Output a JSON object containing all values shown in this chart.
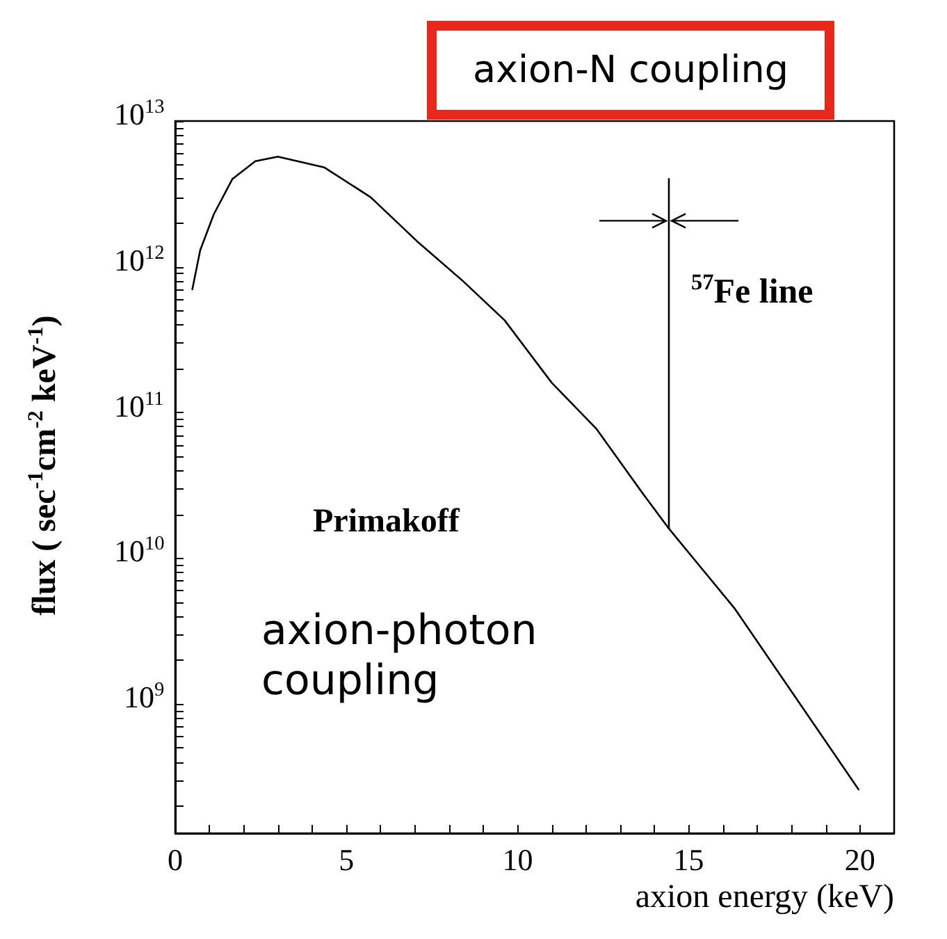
{
  "chart_data": {
    "type": "line",
    "xlabel": "axion energy (keV)",
    "ylabel": "flux ( sec$^{-1}$cm$^{-2}$ keV$^{-1}$)",
    "log": "y",
    "xlim": [
      0,
      21
    ],
    "xticks": [
      0,
      {
        "value": 1,
        "label": null
      },
      {
        "value": 2,
        "label": null
      },
      {
        "value": 3,
        "label": null
      },
      {
        "value": 4,
        "label": null
      },
      5,
      {
        "value": 6,
        "label": null
      },
      {
        "value": 7,
        "label": null
      },
      {
        "value": 8,
        "label": null
      },
      {
        "value": 9,
        "label": null
      },
      10,
      {
        "value": 11,
        "label": null
      },
      {
        "value": 12,
        "label": null
      },
      {
        "value": 13,
        "label": null
      },
      {
        "value": 14,
        "label": null
      },
      15,
      {
        "value": 16,
        "label": null
      },
      {
        "value": 17,
        "label": null
      },
      {
        "value": 18,
        "label": null
      },
      {
        "value": 19,
        "label": null
      },
      20
    ],
    "ylim": [
      130000000.0,
      10000000000000.0
    ],
    "yticks": [
      {
        "value": 200000000.0,
        "label": null
      },
      {
        "value": 300000000.0,
        "label": null
      },
      {
        "value": 400000000.0,
        "label": null
      },
      {
        "value": 500000000.0,
        "label": null
      },
      {
        "value": 600000000.0,
        "label": null
      },
      {
        "value": 700000000.0,
        "label": null
      },
      {
        "value": 800000000.0,
        "label": null
      },
      {
        "value": 900000000.0,
        "label": null
      },
      {
        "value": 1000000000.0,
        "label": "10$^{9}$"
      },
      {
        "value": 2000000000.0,
        "label": null
      },
      {
        "value": 3000000000.0,
        "label": null
      },
      {
        "value": 4000000000.0,
        "label": null
      },
      {
        "value": 5000000000.0,
        "label": null
      },
      {
        "value": 6000000000.0,
        "label": null
      },
      {
        "value": 7000000000.0,
        "label": null
      },
      {
        "value": 8000000000.0,
        "label": null
      },
      {
        "value": 9000000000.0,
        "label": null
      },
      {
        "value": 10000000000.0,
        "label": "10$^{10}$"
      },
      {
        "value": 20000000000.0,
        "label": null
      },
      {
        "value": 30000000000.0,
        "label": null
      },
      {
        "value": 40000000000.0,
        "label": null
      },
      {
        "value": 50000000000.0,
        "label": null
      },
      {
        "value": 60000000000.0,
        "label": null
      },
      {
        "value": 70000000000.0,
        "label": null
      },
      {
        "value": 80000000000.0,
        "label": null
      },
      {
        "value": 90000000000.0,
        "label": null
      },
      {
        "value": 100000000000.0,
        "label": "10$^{11}$"
      },
      {
        "value": 200000000000.0,
        "label": null
      },
      {
        "value": 300000000000.0,
        "label": null
      },
      {
        "value": 400000000000.0,
        "label": null
      },
      {
        "value": 500000000000.0,
        "label": null
      },
      {
        "value": 600000000000.0,
        "label": null
      },
      {
        "value": 700000000000.0,
        "label": null
      },
      {
        "value": 800000000000.0,
        "label": null
      },
      {
        "value": 900000000000.0,
        "label": null
      },
      {
        "value": 1000000000000.0,
        "label": "10$^{12}$"
      },
      {
        "value": 2000000000000.0,
        "label": null
      },
      {
        "value": 3000000000000.0,
        "label": null
      },
      {
        "value": 4000000000000.0,
        "label": null
      },
      {
        "value": 5000000000000.0,
        "label": null
      },
      {
        "value": 6000000000000.0,
        "label": null
      },
      {
        "value": 7000000000000.0,
        "label": null
      },
      {
        "value": 8000000000000.0,
        "label": null
      },
      {
        "value": 9000000000000.0,
        "label": null
      },
      {
        "value": 10000000000000.0,
        "label": "10$^{13}$"
      }
    ],
    "grid": false,
    "marker": "none",
    "line_style": "solid",
    "series": [
      {
        "color": "#000000",
        "x": [
          0.5,
          0.73,
          1.13,
          1.67,
          2.34,
          3.0,
          4.36,
          5.71,
          7.06,
          8.4,
          9.62,
          11,
          12.31,
          13.65,
          14.42,
          16.35,
          19.96
        ],
        "values": [
          700000000000.0,
          1300000000000.0,
          2300000000000.0,
          4000000000000.0,
          5300000000000.0,
          5700000000000.0,
          4800000000000.0,
          3000000000000.0,
          1500000000000.0,
          800000000000.0,
          430000000000.0,
          160000000000.0,
          77000000000.0,
          28000000000.0,
          16000000000.0,
          4500000000.0,
          260000000.0
        ]
      },
      {
        "color": "#000000",
        "x": [
          14.42,
          14.42
        ],
        "values": [
          16000000000.0,
          4000000000000.0
        ]
      }
    ],
    "annotations": [
      "axion-N coupling",
      {
        "text": "$^{57}$Fe line",
        "x": 14.42,
        "y": 4000000000000.0
      },
      "Primakoff",
      "axion-photon coupling"
    ]
  }
}
